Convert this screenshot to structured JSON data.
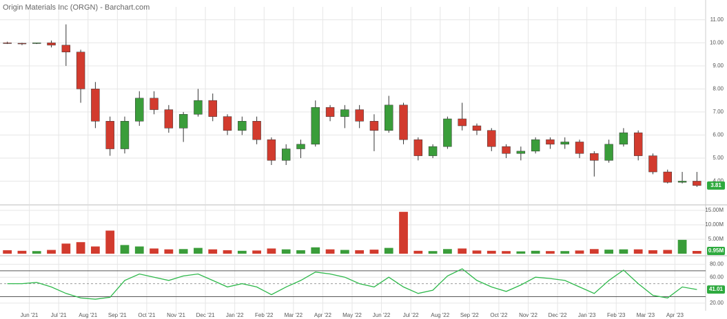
{
  "chart_data": [
    {
      "type": "candlestick",
      "title": "Origin Materials Inc (ORGN) - Barchart.com",
      "up_color": "#3a9d3a",
      "down_color": "#d23b2e",
      "open": [
        10.0,
        9.98,
        9.97,
        10.0,
        9.9,
        9.6,
        8.0,
        6.6,
        5.4,
        6.6,
        7.6,
        7.1,
        6.3,
        6.9,
        7.5,
        6.8,
        6.2,
        6.6,
        5.8,
        4.9,
        5.4,
        5.6,
        7.2,
        6.8,
        7.1,
        6.6,
        6.2,
        7.3,
        5.8,
        5.1,
        5.5,
        6.7,
        6.4,
        6.2,
        5.5,
        5.2,
        5.3,
        5.8,
        5.6,
        5.7,
        5.2,
        4.9,
        5.6,
        6.1,
        5.1,
        4.4,
        3.95,
        4.0
      ],
      "high": [
        10.05,
        10.0,
        10.0,
        10.1,
        10.8,
        9.7,
        8.3,
        6.8,
        6.8,
        7.9,
        7.9,
        7.3,
        7.0,
        8.0,
        7.8,
        6.9,
        6.8,
        6.8,
        5.9,
        5.6,
        5.8,
        7.5,
        7.3,
        7.3,
        7.3,
        6.9,
        7.7,
        7.4,
        5.9,
        5.6,
        6.8,
        7.4,
        6.5,
        6.3,
        5.6,
        5.5,
        5.9,
        5.9,
        5.9,
        5.8,
        5.3,
        5.8,
        6.3,
        6.2,
        5.2,
        4.5,
        4.4,
        4.4
      ],
      "low": [
        9.95,
        9.9,
        9.95,
        9.8,
        9.0,
        7.4,
        6.3,
        5.1,
        5.2,
        6.4,
        6.9,
        6.1,
        5.7,
        6.8,
        6.6,
        6.0,
        6.0,
        5.6,
        4.7,
        4.7,
        5.0,
        5.5,
        6.6,
        6.3,
        6.3,
        5.3,
        6.1,
        5.6,
        4.9,
        5.0,
        5.4,
        6.2,
        6.0,
        5.3,
        5.0,
        4.9,
        5.2,
        5.4,
        5.4,
        5.0,
        4.2,
        4.8,
        5.5,
        4.9,
        4.3,
        3.9,
        3.9,
        3.75
      ],
      "close": [
        9.98,
        9.97,
        10.0,
        9.9,
        9.6,
        8.0,
        6.6,
        5.4,
        6.6,
        7.6,
        7.1,
        6.3,
        6.9,
        7.5,
        6.8,
        6.2,
        6.6,
        5.8,
        4.9,
        5.4,
        5.6,
        7.2,
        6.8,
        7.1,
        6.6,
        6.2,
        7.3,
        5.8,
        5.1,
        5.5,
        6.7,
        6.4,
        6.2,
        5.5,
        5.2,
        5.3,
        5.8,
        5.6,
        5.7,
        5.2,
        4.9,
        5.6,
        6.1,
        5.1,
        4.4,
        3.95,
        4.0,
        3.81
      ],
      "ylim": [
        3,
        11.5
      ],
      "yticks": [
        {
          "value": 4,
          "label": "4.00"
        },
        {
          "value": 5,
          "label": "5.00"
        },
        {
          "value": 6,
          "label": "6.00"
        },
        {
          "value": 7,
          "label": "7.00"
        },
        {
          "value": 8,
          "label": "8.00"
        },
        {
          "value": 9,
          "label": "9.00"
        },
        {
          "value": 10,
          "label": "10.00"
        },
        {
          "value": 11,
          "label": "11.00"
        }
      ]
    },
    {
      "type": "volume",
      "up_color": "#3a9d3a",
      "down_color": "#d23b2e",
      "values": [
        1.2,
        1.0,
        0.9,
        1.3,
        3.5,
        4.0,
        2.5,
        8.0,
        3.0,
        2.5,
        1.8,
        1.5,
        1.6,
        2.0,
        1.5,
        1.2,
        1.0,
        1.1,
        1.8,
        1.5,
        1.2,
        2.2,
        1.5,
        1.3,
        1.2,
        1.4,
        2.0,
        14.5,
        1.0,
        0.9,
        1.6,
        1.8,
        1.1,
        1.0,
        0.9,
        0.8,
        1.0,
        0.9,
        0.9,
        1.1,
        1.6,
        1.4,
        1.5,
        1.5,
        1.2,
        1.3,
        4.8,
        0.95
      ],
      "value_labels": [
        null,
        null,
        null,
        null,
        null,
        null,
        null,
        null,
        null,
        null,
        null,
        null,
        null,
        null,
        null,
        null,
        null,
        null,
        null,
        null,
        null,
        null,
        null,
        null,
        null,
        null,
        null,
        null,
        null,
        null,
        null,
        null,
        null,
        null,
        null,
        null,
        null,
        null,
        null,
        null,
        null,
        null,
        null,
        null,
        null,
        null,
        null,
        "0.95M"
      ],
      "ylim": [
        0,
        16.2
      ],
      "yticks": [
        {
          "value": 5,
          "label": "5.00M"
        },
        {
          "value": 10,
          "label": "10.00M"
        },
        {
          "value": 15,
          "label": "15.00M"
        }
      ]
    },
    {
      "type": "line",
      "color": "#2db84a",
      "categories": [
        null,
        null,
        "Jun '21",
        null,
        "Jul '21",
        null,
        "Aug '21",
        null,
        "Sep '21",
        null,
        "Oct '21",
        null,
        "Nov '21",
        null,
        "Dec '21",
        null,
        "Jan '22",
        null,
        "Feb '22",
        null,
        "Mar '22",
        null,
        "Apr '22",
        null,
        "May '22",
        null,
        "Jun '22",
        null,
        "Jul '22",
        null,
        "Aug '22",
        null,
        "Sep '22",
        null,
        "Oct '22",
        null,
        "Nov '22",
        null,
        "Dec '22",
        null,
        "Jan '23",
        null,
        "Feb '23",
        null,
        "Mar '23",
        null,
        "Apr '23",
        null
      ],
      "values": [
        50,
        50,
        52,
        45,
        35,
        28,
        26,
        29,
        55,
        65,
        60,
        55,
        62,
        65,
        55,
        45,
        50,
        45,
        33,
        45,
        55,
        68,
        65,
        60,
        50,
        45,
        60,
        45,
        35,
        40,
        62,
        73,
        55,
        45,
        38,
        48,
        60,
        58,
        55,
        45,
        35,
        55,
        71,
        50,
        32,
        28,
        45,
        41.01
      ],
      "ylim": [
        5,
        90
      ],
      "yticks": [
        {
          "value": 20,
          "label": "20.00"
        },
        {
          "value": 60,
          "label": "60.00"
        },
        {
          "value": 80,
          "label": "80.00"
        }
      ],
      "reference_lines": [
        30,
        50,
        70
      ]
    }
  ]
}
